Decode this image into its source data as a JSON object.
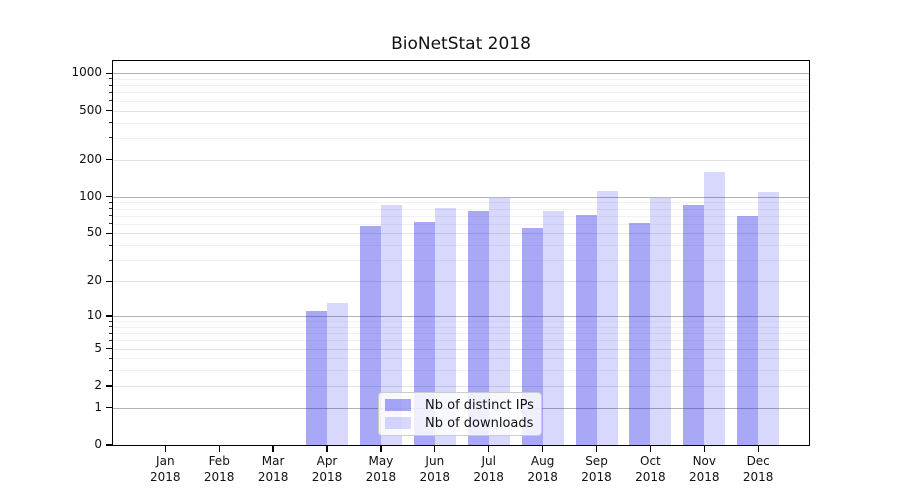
{
  "chart_data": {
    "type": "bar",
    "title": "BioNetStat 2018",
    "categories": [
      "Jan",
      "Feb",
      "Mar",
      "Apr",
      "May",
      "Jun",
      "Jul",
      "Aug",
      "Sep",
      "Oct",
      "Nov",
      "Dec"
    ],
    "year_label": "2018",
    "series": [
      {
        "name": "Nb of distinct IPs",
        "color": "#a7a7f0",
        "values": [
          0,
          0,
          0,
          11,
          58,
          62,
          76,
          55,
          71,
          61,
          86,
          70
        ]
      },
      {
        "name": "Nb of downloads",
        "color": "#d9d9f8",
        "values": [
          0,
          0,
          0,
          13,
          86,
          81,
          97,
          77,
          112,
          97,
          160,
          110
        ]
      }
    ],
    "xlabel": "",
    "ylabel": "",
    "yscale": "log1p",
    "yticks": [
      0,
      1,
      2,
      5,
      10,
      20,
      50,
      100,
      200,
      500,
      1000
    ],
    "minor_gridlines": [
      3,
      4,
      6,
      7,
      8,
      9,
      30,
      40,
      60,
      70,
      80,
      90,
      300,
      400,
      600,
      700,
      800,
      900
    ],
    "ylim": [
      0,
      1257
    ],
    "grid": "on",
    "legend_position": "lower-center-inside"
  }
}
